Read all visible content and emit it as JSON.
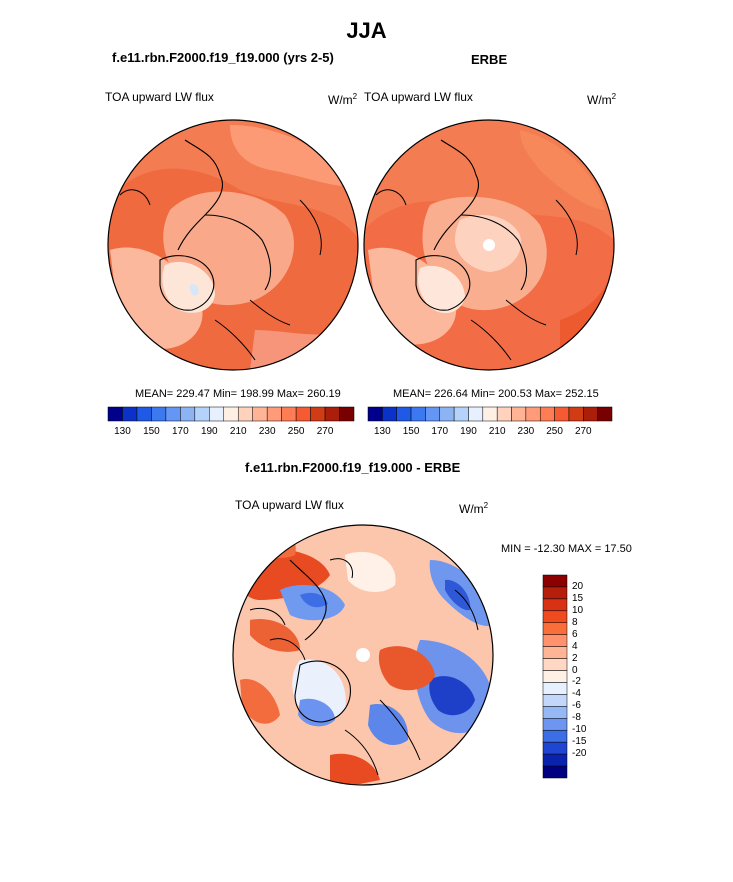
{
  "header": {
    "title": "JJA"
  },
  "panels": [
    {
      "title": "f.e11.rbn.F2000.f19_f19.000 (yrs 2-5)",
      "variable": "TOA upward LW flux",
      "units_base": "W/m",
      "units_exp": "2",
      "stats": {
        "mean": "229.47",
        "min": "198.99",
        "max": "260.19"
      },
      "stats_text": "MEAN= 229.47  Min= 198.99  Max= 260.19"
    },
    {
      "title": "ERBE",
      "variable": "TOA upward LW flux",
      "units_base": "W/m",
      "units_exp": "2",
      "stats": {
        "mean": "226.64",
        "min": "200.53",
        "max": "252.15"
      },
      "stats_text": "MEAN= 226.64  Min= 200.53  Max= 252.15"
    }
  ],
  "abs_colorbar": {
    "tick_labels": [
      "130",
      "150",
      "170",
      "190",
      "210",
      "230",
      "250",
      "270"
    ],
    "colors": [
      "#00008c",
      "#0a32c8",
      "#1e5ae6",
      "#3c78f0",
      "#6496f5",
      "#8cb4f5",
      "#b4d2fa",
      "#e6f0ff",
      "#fff0e6",
      "#ffd2be",
      "#ffb496",
      "#ff9b78",
      "#ff7d55",
      "#f55a32",
      "#d23c14",
      "#aa1e0a",
      "#780000"
    ]
  },
  "diff_panel": {
    "title": "f.e11.rbn.F2000.f19_f19.000 - ERBE",
    "variable": "TOA upward LW flux",
    "units_base": "W/m",
    "units_exp": "2",
    "minmax_text": "MIN = -12.30 MAX =  17.50",
    "min": -12.3,
    "max": 17.5
  },
  "diff_colorbar": {
    "tick_labels": [
      "20",
      "15",
      "10",
      "8",
      "6",
      "4",
      "2",
      "0",
      "-2",
      "-4",
      "-6",
      "-8",
      "-10",
      "-15",
      "-20"
    ],
    "colors": [
      "#8c0000",
      "#b41e0a",
      "#d73214",
      "#f04b1e",
      "#fa6e3c",
      "#ff916e",
      "#ffb496",
      "#ffd7c3",
      "#fff0e6",
      "#e6f0ff",
      "#c3d7fa",
      "#96b9f5",
      "#6e96f0",
      "#3c6ee6",
      "#1e46d2",
      "#0a23af",
      "#000080"
    ]
  }
}
